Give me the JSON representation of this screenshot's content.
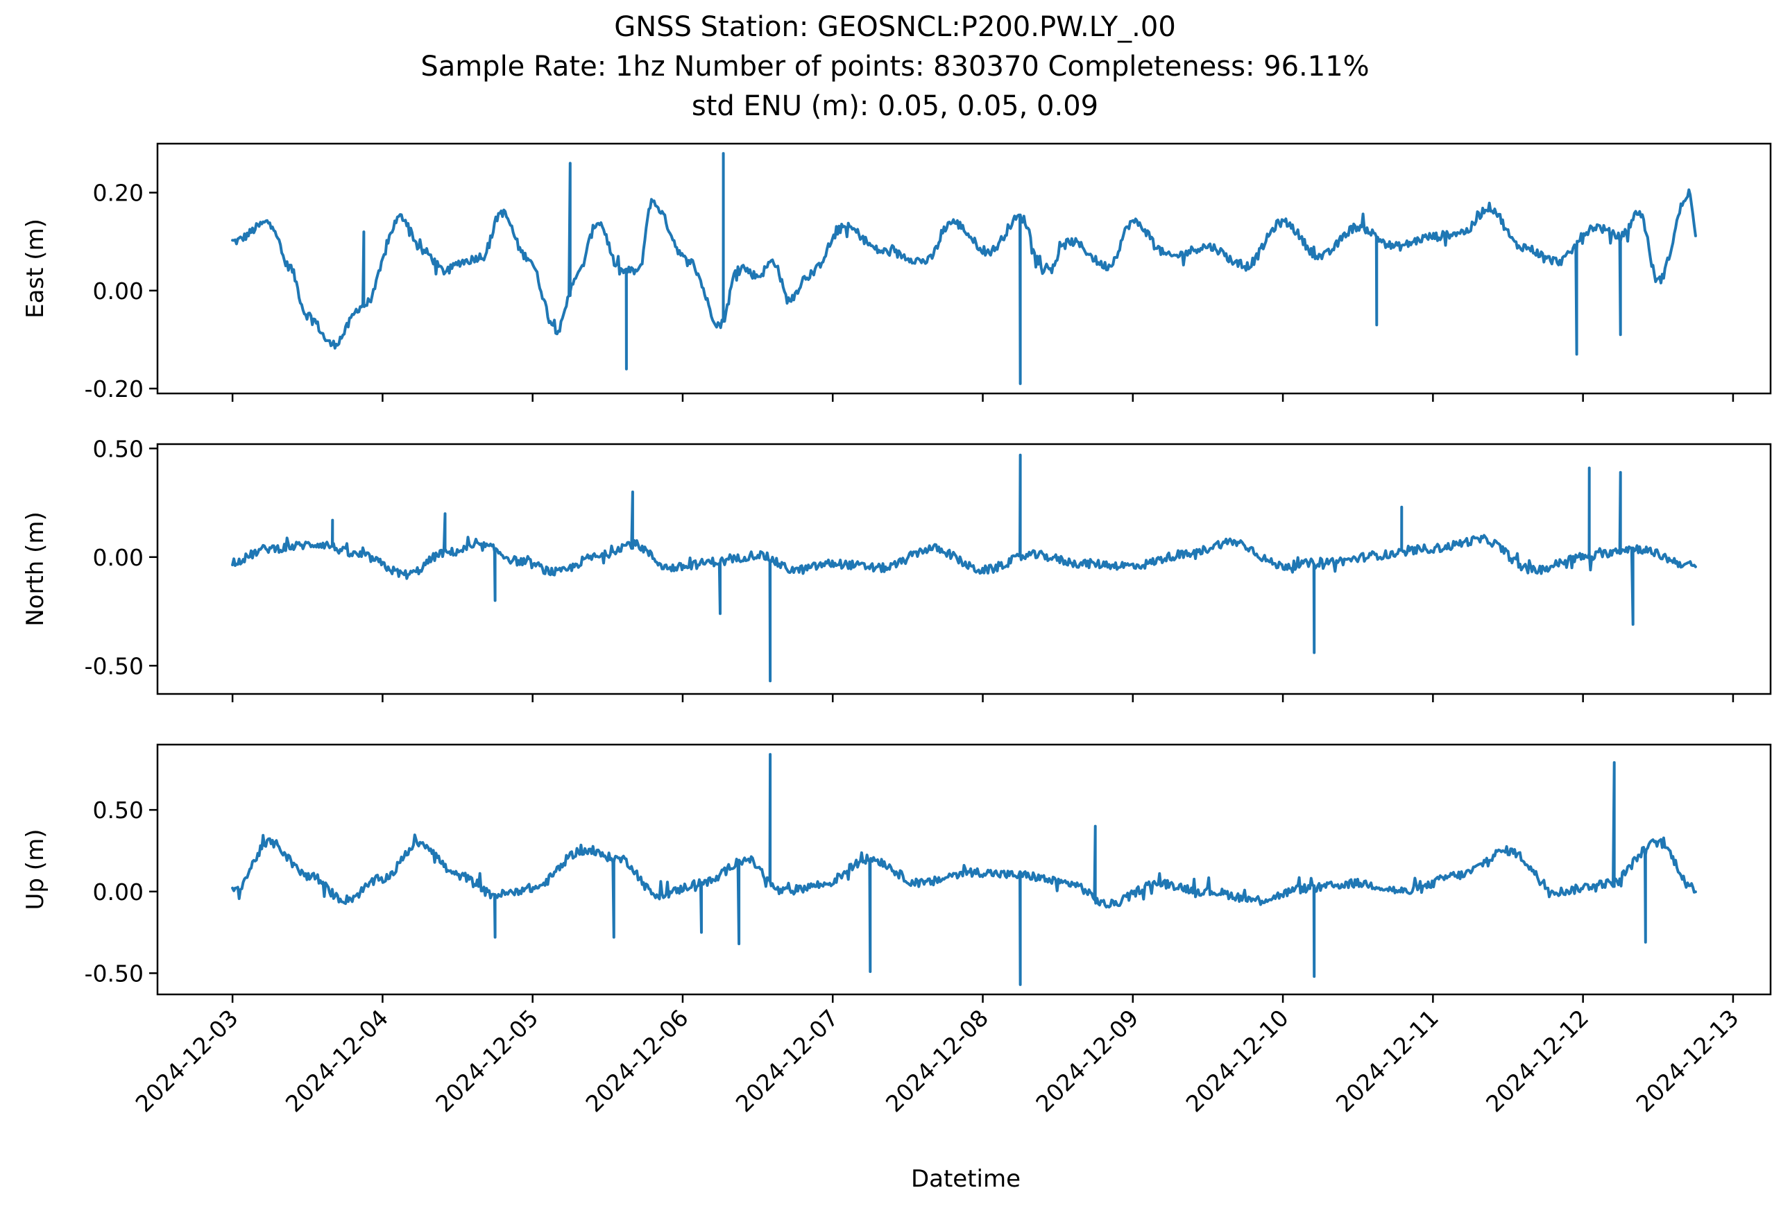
{
  "figure": {
    "title_lines": [
      "GNSS Station: GEOSNCL:P200.PW.LY_.00",
      "Sample Rate: 1hz   Number of points: 830370    Completeness:  96.11%",
      "std ENU (m):  0.05, 0.05, 0.09"
    ],
    "xlabel": "Datetime",
    "line_color": "#1f77b4"
  },
  "chart_data": [
    {
      "type": "line",
      "ylabel": "East (m)",
      "x_range": [
        "2024-12-02T12:00",
        "2024-12-13T06:00"
      ],
      "ylim": [
        -0.21,
        0.3
      ],
      "yticks": [
        -0.2,
        0.0,
        0.2
      ],
      "ytick_labels": [
        "-0.20",
        "0.00",
        "0.20"
      ],
      "xticks": [
        "2024-12-03",
        "2024-12-04",
        "2024-12-05",
        "2024-12-06",
        "2024-12-07",
        "2024-12-08",
        "2024-12-09",
        "2024-12-10",
        "2024-12-11",
        "2024-12-12",
        "2024-12-13"
      ],
      "xtick_labels": [],
      "series": [
        {
          "x": [
            "2024-12-03T00:00",
            "2024-12-03T06:00",
            "2024-12-03T09:00",
            "2024-12-03T12:00",
            "2024-12-03T16:00",
            "2024-12-03T21:00",
            "2024-12-04T03:00",
            "2024-12-04T06:30",
            "2024-12-04T10:00",
            "2024-12-04T13:00",
            "2024-12-04T16:00",
            "2024-12-04T19:00",
            "2024-12-04T23:00",
            "2024-12-05T04:00",
            "2024-12-05T07:00",
            "2024-12-05T10:30",
            "2024-12-05T14:00",
            "2024-12-05T17:00",
            "2024-12-05T19:00",
            "2024-12-06T01:00",
            "2024-12-06T06:00",
            "2024-12-06T09:00",
            "2024-12-06T12:00",
            "2024-12-06T14:30",
            "2024-12-06T17:00",
            "2024-12-06T20:00",
            "2024-12-07T02:00",
            "2024-12-07T08:00",
            "2024-12-07T15:00",
            "2024-12-07T19:00",
            "2024-12-08T01:00",
            "2024-12-08T06:00",
            "2024-12-08T10:00",
            "2024-12-08T14:00",
            "2024-12-08T20:00",
            "2024-12-09T00:00",
            "2024-12-09T06:00",
            "2024-12-09T12:00",
            "2024-12-09T18:00",
            "2024-12-10T00:00",
            "2024-12-10T06:00",
            "2024-12-10T12:00",
            "2024-12-10T18:00",
            "2024-12-11T00:00",
            "2024-12-11T05:00",
            "2024-12-11T09:00",
            "2024-12-11T14:00",
            "2024-12-11T20:00",
            "2024-12-12T02:00",
            "2024-12-12T06:00",
            "2024-12-12T09:00",
            "2024-12-12T12:00",
            "2024-12-12T17:00",
            "2024-12-12T18:00"
          ],
          "y": [
            0.1,
            0.14,
            0.05,
            -0.05,
            -0.11,
            -0.03,
            0.15,
            0.08,
            0.04,
            0.06,
            0.07,
            0.16,
            0.07,
            -0.08,
            0.03,
            0.14,
            0.04,
            0.04,
            0.18,
            0.06,
            -0.07,
            0.05,
            0.03,
            0.06,
            -0.02,
            0.03,
            0.13,
            0.08,
            0.06,
            0.14,
            0.08,
            0.15,
            0.04,
            0.1,
            0.05,
            0.14,
            0.07,
            0.09,
            0.05,
            0.14,
            0.07,
            0.13,
            0.09,
            0.11,
            0.12,
            0.17,
            0.09,
            0.06,
            0.13,
            0.11,
            0.16,
            0.02,
            0.2,
            0.12
          ]
        }
      ],
      "spikes": [
        {
          "x": "2024-12-03T21:00",
          "y": 0.12
        },
        {
          "x": "2024-12-05T06:00",
          "y": 0.26
        },
        {
          "x": "2024-12-05T15:00",
          "y": -0.16
        },
        {
          "x": "2024-12-06T06:30",
          "y": 0.28
        },
        {
          "x": "2024-12-08T06:00",
          "y": -0.19
        },
        {
          "x": "2024-12-10T15:00",
          "y": -0.07
        },
        {
          "x": "2024-12-11T23:00",
          "y": -0.13
        },
        {
          "x": "2024-12-12T06:00",
          "y": -0.09
        }
      ]
    },
    {
      "type": "line",
      "ylabel": "North (m)",
      "x_range": [
        "2024-12-02T12:00",
        "2024-12-13T06:00"
      ],
      "ylim": [
        -0.63,
        0.52
      ],
      "yticks": [
        -0.5,
        0.0,
        0.5
      ],
      "ytick_labels": [
        "-0.50",
        "0.00",
        "0.50"
      ],
      "xticks": [
        "2024-12-03",
        "2024-12-04",
        "2024-12-05",
        "2024-12-06",
        "2024-12-07",
        "2024-12-08",
        "2024-12-09",
        "2024-12-10",
        "2024-12-11",
        "2024-12-12",
        "2024-12-13"
      ],
      "xtick_labels": [],
      "series": [
        {
          "x": [
            "2024-12-03T00:00",
            "2024-12-03T06:00",
            "2024-12-03T14:00",
            "2024-12-03T20:00",
            "2024-12-04T04:00",
            "2024-12-04T10:00",
            "2024-12-04T16:00",
            "2024-12-04T22:00",
            "2024-12-05T04:00",
            "2024-12-05T10:00",
            "2024-12-05T16:00",
            "2024-12-05T22:00",
            "2024-12-06T06:00",
            "2024-12-06T12:00",
            "2024-12-06T18:00",
            "2024-12-07T00:00",
            "2024-12-07T08:00",
            "2024-12-07T16:00",
            "2024-12-08T00:00",
            "2024-12-08T08:00",
            "2024-12-08T16:00",
            "2024-12-09T00:00",
            "2024-12-09T08:00",
            "2024-12-09T16:00",
            "2024-12-10T00:00",
            "2024-12-10T08:00",
            "2024-12-10T16:00",
            "2024-12-11T00:00",
            "2024-12-11T08:00",
            "2024-12-11T16:00",
            "2024-12-12T00:00",
            "2024-12-12T08:00",
            "2024-12-12T18:00"
          ],
          "y": [
            -0.02,
            0.04,
            0.06,
            0.01,
            -0.08,
            0.02,
            0.05,
            -0.02,
            -0.07,
            0.0,
            0.06,
            -0.05,
            -0.02,
            0.01,
            -0.06,
            -0.03,
            -0.05,
            0.04,
            -0.06,
            0.01,
            -0.03,
            -0.04,
            0.01,
            0.07,
            -0.04,
            -0.02,
            0.01,
            0.04,
            0.08,
            -0.06,
            0.0,
            0.04,
            -0.04
          ]
        }
      ],
      "spikes": [
        {
          "x": "2024-12-03T16:00",
          "y": 0.17
        },
        {
          "x": "2024-12-04T10:00",
          "y": 0.2
        },
        {
          "x": "2024-12-04T18:00",
          "y": -0.2
        },
        {
          "x": "2024-12-05T16:00",
          "y": 0.3
        },
        {
          "x": "2024-12-06T06:00",
          "y": -0.26
        },
        {
          "x": "2024-12-06T14:00",
          "y": -0.57
        },
        {
          "x": "2024-12-08T06:00",
          "y": 0.47
        },
        {
          "x": "2024-12-10T05:00",
          "y": -0.44
        },
        {
          "x": "2024-12-10T19:00",
          "y": 0.23
        },
        {
          "x": "2024-12-12T01:00",
          "y": 0.41
        },
        {
          "x": "2024-12-12T06:00",
          "y": 0.39
        },
        {
          "x": "2024-12-12T08:00",
          "y": -0.31
        }
      ]
    },
    {
      "type": "line",
      "ylabel": "Up (m)",
      "x_range": [
        "2024-12-02T12:00",
        "2024-12-13T06:00"
      ],
      "ylim": [
        -0.63,
        0.9
      ],
      "yticks": [
        -0.5,
        0.0,
        0.5
      ],
      "ytick_labels": [
        "-0.50",
        "0.00",
        "0.50"
      ],
      "xticks": [
        "2024-12-03",
        "2024-12-04",
        "2024-12-05",
        "2024-12-06",
        "2024-12-07",
        "2024-12-08",
        "2024-12-09",
        "2024-12-10",
        "2024-12-11",
        "2024-12-12",
        "2024-12-13"
      ],
      "xtick_labels": [
        "2024-12-03",
        "2024-12-04",
        "2024-12-05",
        "2024-12-06",
        "2024-12-07",
        "2024-12-08",
        "2024-12-09",
        "2024-12-10",
        "2024-12-11",
        "2024-12-12",
        "2024-12-13"
      ],
      "series": [
        {
          "x": [
            "2024-12-03T00:00",
            "2024-12-03T06:00",
            "2024-12-03T12:00",
            "2024-12-03T18:00",
            "2024-12-04T00:00",
            "2024-12-04T06:00",
            "2024-12-04T12:00",
            "2024-12-04T18:00",
            "2024-12-05T00:00",
            "2024-12-05T08:00",
            "2024-12-05T14:00",
            "2024-12-05T20:00",
            "2024-12-06T04:00",
            "2024-12-06T10:00",
            "2024-12-06T16:00",
            "2024-12-06T22:00",
            "2024-12-07T06:00",
            "2024-12-07T14:00",
            "2024-12-07T22:00",
            "2024-12-08T06:00",
            "2024-12-08T14:00",
            "2024-12-08T20:00",
            "2024-12-09T04:00",
            "2024-12-09T12:00",
            "2024-12-09T20:00",
            "2024-12-10T04:00",
            "2024-12-10T12:00",
            "2024-12-10T20:00",
            "2024-12-11T04:00",
            "2024-12-11T12:00",
            "2024-12-11T20:00",
            "2024-12-12T04:00",
            "2024-12-12T12:00",
            "2024-12-12T18:00"
          ],
          "y": [
            0.0,
            0.3,
            0.1,
            -0.05,
            0.08,
            0.3,
            0.1,
            -0.02,
            0.02,
            0.25,
            0.2,
            -0.02,
            0.06,
            0.2,
            0.0,
            0.04,
            0.2,
            0.05,
            0.12,
            0.1,
            0.05,
            -0.08,
            0.05,
            0.0,
            -0.05,
            0.02,
            0.05,
            0.0,
            0.1,
            0.25,
            0.0,
            0.05,
            0.3,
            0.02
          ]
        }
      ],
      "spikes": [
        {
          "x": "2024-12-04T18:00",
          "y": -0.28
        },
        {
          "x": "2024-12-05T13:00",
          "y": -0.28
        },
        {
          "x": "2024-12-06T03:00",
          "y": -0.25
        },
        {
          "x": "2024-12-06T09:00",
          "y": -0.32
        },
        {
          "x": "2024-12-06T14:00",
          "y": 0.84
        },
        {
          "x": "2024-12-07T06:00",
          "y": -0.49
        },
        {
          "x": "2024-12-08T06:00",
          "y": -0.57
        },
        {
          "x": "2024-12-08T18:00",
          "y": 0.4
        },
        {
          "x": "2024-12-10T05:00",
          "y": -0.52
        },
        {
          "x": "2024-12-12T05:00",
          "y": 0.79
        },
        {
          "x": "2024-12-12T10:00",
          "y": -0.31
        }
      ]
    }
  ]
}
